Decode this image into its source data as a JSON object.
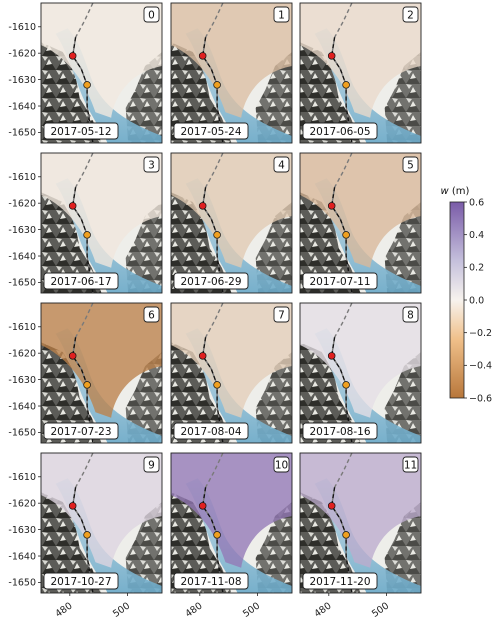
{
  "chart_data": {
    "type": "heatmap",
    "variable": "w",
    "unit": "(m)",
    "colorbar": {
      "range": [
        -0.6,
        0.6
      ],
      "ticks": [
        "0.6",
        "0.4",
        "0.2",
        "0.0",
        "−0.2",
        "−0.4",
        "−0.6"
      ],
      "colors": {
        "neg": "#b8773b",
        "mid": "#f7f3ee",
        "pos": "#7a5ba8"
      }
    },
    "x_ticks": [
      "480",
      "500"
    ],
    "y_ticks": [
      "-1610",
      "-1620",
      "-1630",
      "-1640",
      "-1650"
    ],
    "xlim": [
      470,
      512
    ],
    "ylim": [
      -1654,
      -1601
    ],
    "markers": [
      {
        "name": "red",
        "color": "#e02020",
        "x": 481,
        "y": -1621
      },
      {
        "name": "orange",
        "color": "#f0a020",
        "x": 486,
        "y": -1632
      }
    ],
    "panels": [
      {
        "index": "0",
        "date": "2017-05-12",
        "w": -0.05
      },
      {
        "index": "1",
        "date": "2017-05-24",
        "w": -0.25
      },
      {
        "index": "2",
        "date": "2017-06-05",
        "w": -0.12
      },
      {
        "index": "3",
        "date": "2017-06-17",
        "w": -0.06
      },
      {
        "index": "4",
        "date": "2017-06-29",
        "w": -0.2
      },
      {
        "index": "5",
        "date": "2017-07-11",
        "w": -0.28
      },
      {
        "index": "6",
        "date": "2017-07-23",
        "w": -0.55
      },
      {
        "index": "7",
        "date": "2017-08-04",
        "w": -0.18
      },
      {
        "index": "8",
        "date": "2017-08-16",
        "w": 0.08
      },
      {
        "index": "9",
        "date": "2017-10-27",
        "w": 0.12
      },
      {
        "index": "10",
        "date": "2017-11-08",
        "w": 0.48
      },
      {
        "index": "11",
        "date": "2017-11-20",
        "w": 0.28
      }
    ]
  }
}
